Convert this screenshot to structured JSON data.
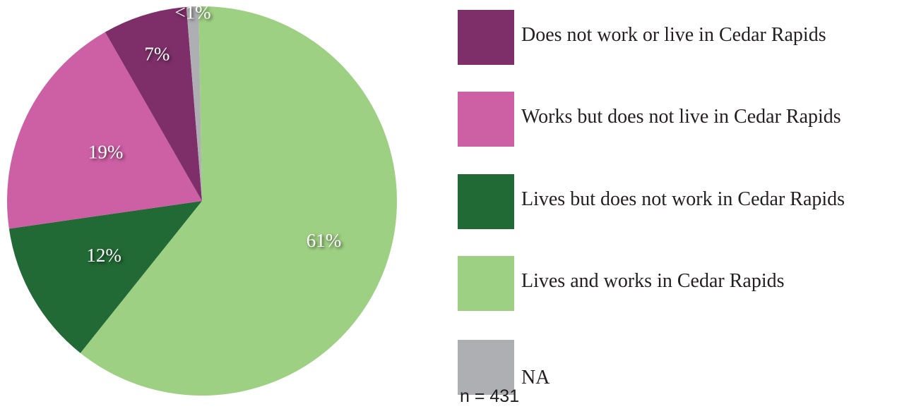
{
  "chart_data": {
    "type": "pie",
    "title": "",
    "slices": [
      {
        "name": "Lives and works in Cedar Rapids",
        "value": 61,
        "label": "61%",
        "color": "#9ed083"
      },
      {
        "name": "Lives but does not work in Cedar Rapids",
        "value": 12,
        "label": "12%",
        "color": "#226a35"
      },
      {
        "name": "Works but does not live in Cedar Rapids",
        "value": 19,
        "label": "19%",
        "color": "#cd5fa4"
      },
      {
        "name": "Does not work or live in Cedar Rapids",
        "value": 7,
        "label": "7%",
        "color": "#7e2f69"
      },
      {
        "name": "NA",
        "value": 1,
        "label": "<1%",
        "color": "#aeafb2"
      }
    ],
    "legend": {
      "placement": "right",
      "entries": [
        {
          "label": "Does not work or live in Cedar Rapids",
          "color": "#7e2f69"
        },
        {
          "label": "Works but does not live in Cedar Rapids",
          "color": "#cd5fa4"
        },
        {
          "label": "Lives but does not work in Cedar Rapids",
          "color": "#226a35"
        },
        {
          "label": "Lives and works in Cedar Rapids",
          "color": "#9ed083"
        },
        {
          "label": "NA",
          "color": "#aeafb2"
        }
      ]
    },
    "note": "n = 431"
  }
}
